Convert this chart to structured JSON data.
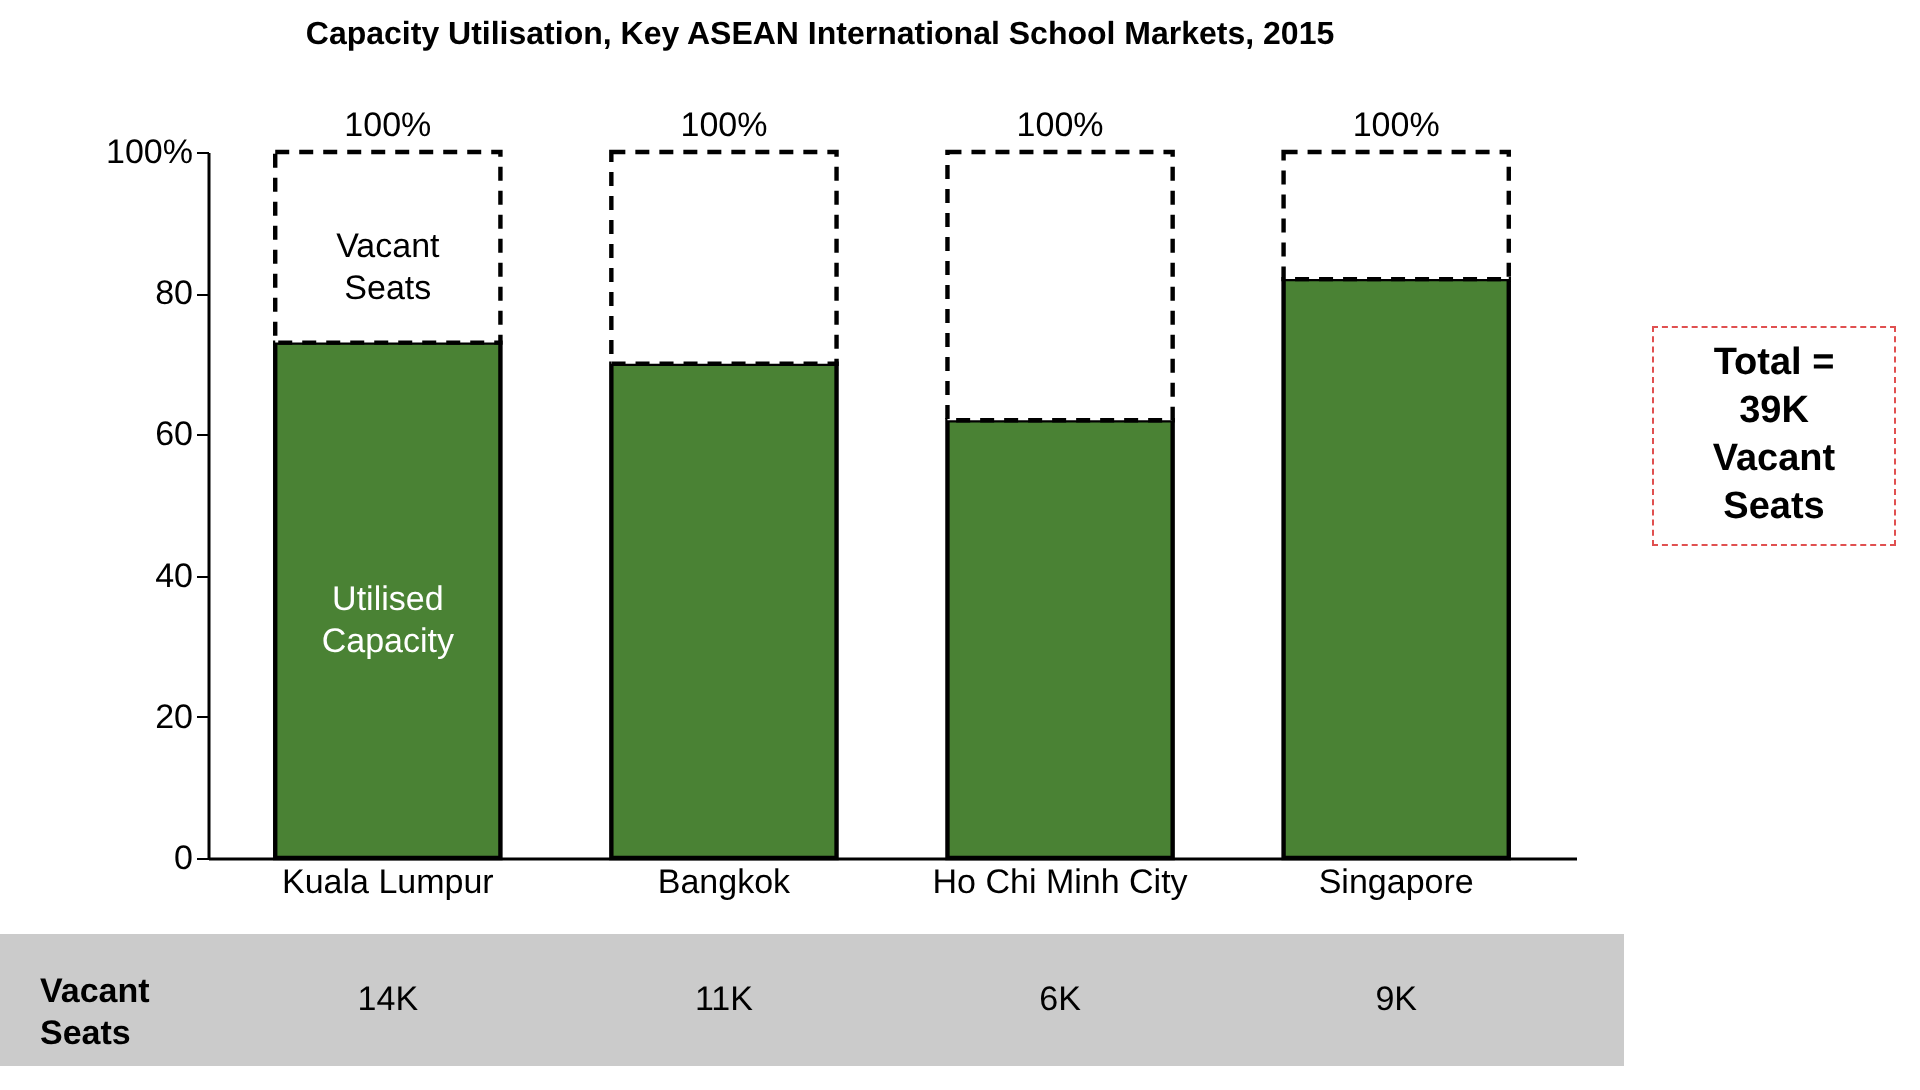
{
  "chart_data": {
    "type": "bar",
    "title": "Capacity Utilisation, Key ASEAN International School Markets, 2015",
    "categories": [
      "Kuala Lumpur",
      "Bangkok",
      "Ho Chi Minh City",
      "Singapore"
    ],
    "stacked": true,
    "series": [
      {
        "name": "Utilised Capacity",
        "color": "#4a8234",
        "values": [
          73,
          70,
          62,
          82
        ]
      },
      {
        "name": "Vacant Seats",
        "color": "#ffffff",
        "values": [
          27,
          30,
          38,
          18
        ],
        "line_style": "dashed"
      }
    ],
    "totals": [
      "100%",
      "100%",
      "100%",
      "100%"
    ],
    "ylim": [
      0,
      100
    ],
    "yticks": [
      0,
      20,
      40,
      60,
      80,
      {
        "value": 100,
        "label": "100%"
      }
    ],
    "grid": false,
    "legend": false,
    "annotations": [
      "Vacant Seats",
      "14K",
      "11K",
      "6K",
      "9K",
      "Total = 39K Vacant Seats"
    ]
  }
}
